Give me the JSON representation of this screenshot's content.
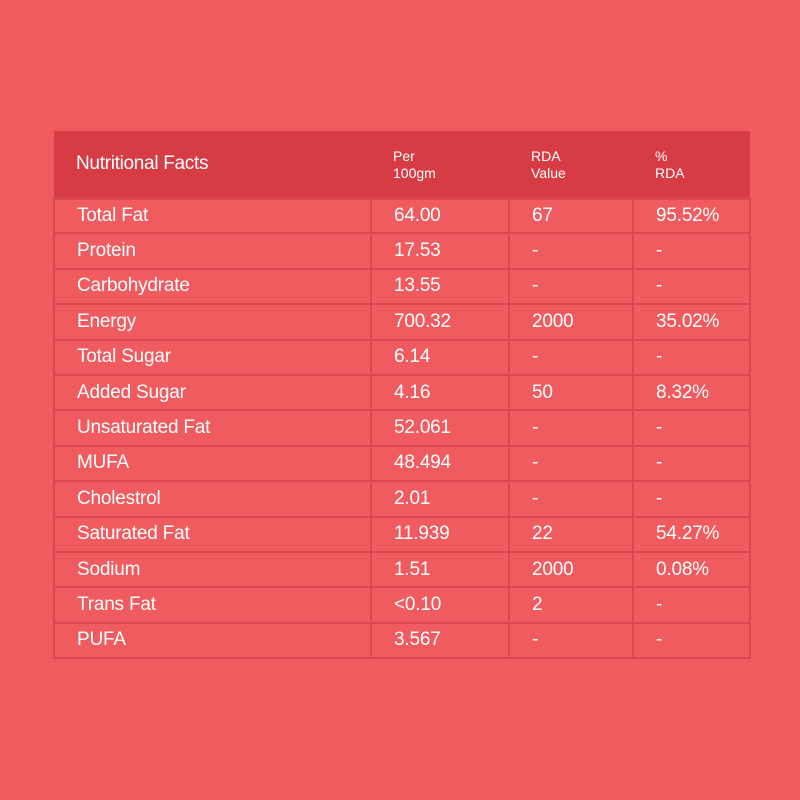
{
  "table": {
    "headers": [
      {
        "line1": "Nutritional Facts",
        "line2": ""
      },
      {
        "line1": "Per",
        "line2": "100gm"
      },
      {
        "line1": "RDA",
        "line2": "Value"
      },
      {
        "line1": "%",
        "line2": "RDA"
      }
    ],
    "rows": [
      [
        "Total Fat",
        "64.00",
        "67",
        "95.52%"
      ],
      [
        "Protein",
        "17.53",
        "-",
        "-"
      ],
      [
        "Carbohydrate",
        "13.55",
        "-",
        "-"
      ],
      [
        "Energy",
        "700.32",
        "2000",
        "35.02%"
      ],
      [
        "Total Sugar",
        "6.14",
        "-",
        "-"
      ],
      [
        "Added Sugar",
        "4.16",
        "50",
        "8.32%"
      ],
      [
        "Unsaturated Fat",
        "52.061",
        "-",
        "-"
      ],
      [
        "MUFA",
        "48.494",
        "-",
        "-"
      ],
      [
        "Cholestrol",
        "2.01",
        "-",
        "-"
      ],
      [
        "Saturated Fat",
        "11.939",
        "22",
        "54.27%"
      ],
      [
        "Sodium",
        "1.51",
        "2000",
        "0.08%"
      ],
      [
        "Trans Fat",
        "<0.10",
        "2",
        "-"
      ],
      [
        "PUFA",
        "3.567",
        "-",
        "-"
      ]
    ]
  },
  "colors": {
    "background": "#ef5b5f",
    "header_band": "#d73c45",
    "grid_lines": "#d94850",
    "text": "#ffffff"
  }
}
